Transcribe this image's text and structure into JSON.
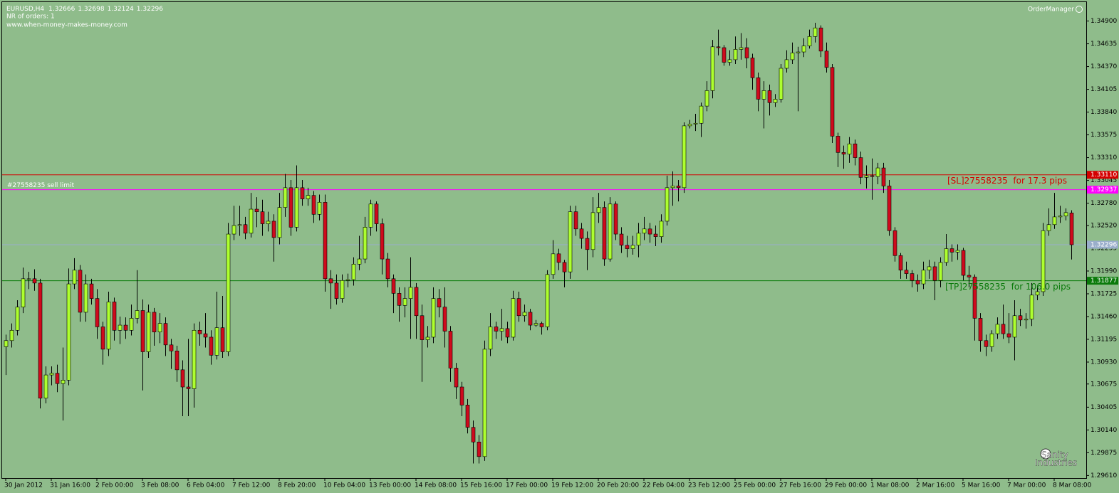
{
  "chart_data": {
    "type": "candlestick",
    "symbol": "EURUSD,H4",
    "info": "NR of orders: 1",
    "website": "www.when-money-makes-money.com",
    "panel": "OrderManager",
    "watermark": [
      "Sanity",
      "Industries"
    ],
    "background": "#8fbc8b",
    "up_color": "#adff2f",
    "down_color": "#cf0a1c",
    "bid_color": "#9aaecb",
    "ylim": [
      1.2958,
      1.3512
    ],
    "yticks": [
      {
        "value": 1.349,
        "label": "1.34900"
      },
      1.34635,
      {
        "value": 1.3437,
        "label": "1.34370"
      },
      1.34105,
      {
        "value": 1.3384,
        "label": "1.33840"
      },
      1.33575,
      {
        "value": 1.3331,
        "label": "1.33310"
      },
      1.33045,
      {
        "value": 1.3278,
        "label": "1.32780"
      },
      {
        "value": 1.3252,
        "label": "1.32520"
      },
      1.32255,
      {
        "value": 1.3199,
        "label": "1.31990"
      },
      1.31725,
      {
        "value": 1.3146,
        "label": "1.31460"
      },
      1.31195,
      {
        "value": 1.3093,
        "label": "1.30930"
      },
      1.30675,
      1.30405,
      {
        "value": 1.3014,
        "label": "1.30140"
      },
      1.29875,
      {
        "value": 1.2961,
        "label": "1.29610"
      }
    ],
    "stop_loss": {
      "price": {
        "value": 1.3311,
        "label": "1.33110"
      },
      "text": "[SL]27558235  for 17.3 pips",
      "color": "#d40000"
    },
    "order": {
      "price": 1.32937,
      "text": "#27558235 sell limit",
      "color": "#ff00ff"
    },
    "take_profit": {
      "price": 1.31877,
      "text": "[TP]27558235  for 106.0 pips",
      "color": "#0a7a0a"
    },
    "categories": [
      "30 Jan 2012",
      null,
      null,
      null,
      null,
      null,
      null,
      null,
      "31 Jan 16:00",
      null,
      null,
      null,
      null,
      null,
      null,
      null,
      "2 Feb 00:00",
      null,
      null,
      null,
      null,
      null,
      null,
      null,
      "3 Feb 08:00",
      null,
      null,
      null,
      null,
      null,
      null,
      null,
      "6 Feb 04:00",
      null,
      null,
      null,
      null,
      null,
      null,
      null,
      "7 Feb 12:00",
      null,
      null,
      null,
      null,
      null,
      null,
      null,
      "8 Feb 20:00",
      null,
      null,
      null,
      null,
      null,
      null,
      null,
      "10 Feb 04:00",
      null,
      null,
      null,
      null,
      null,
      null,
      null,
      "13 Feb 00:00",
      null,
      null,
      null,
      null,
      null,
      null,
      null,
      "14 Feb 08:00",
      null,
      null,
      null,
      null,
      null,
      null,
      null,
      "15 Feb 16:00",
      null,
      null,
      null,
      null,
      null,
      null,
      null,
      "17 Feb 00:00",
      null,
      null,
      null,
      null,
      null,
      null,
      null,
      "19 Feb 12:00",
      null,
      null,
      null,
      null,
      null,
      null,
      null,
      "20 Feb 20:00",
      null,
      null,
      null,
      null,
      null,
      null,
      null,
      "22 Feb 04:00",
      null,
      null,
      null,
      null,
      null,
      null,
      null,
      "23 Feb 12:00",
      null,
      null,
      null,
      null,
      null,
      null,
      null,
      "25 Feb 00:00",
      null,
      null,
      null,
      null,
      null,
      null,
      null,
      "27 Feb 16:00",
      null,
      null,
      null,
      null,
      null,
      null,
      null,
      "29 Feb 00:00",
      null,
      null,
      null,
      null,
      null,
      null,
      null,
      "1 Mar 08:00",
      null,
      null,
      null,
      null,
      null,
      null,
      null,
      "2 Mar 16:00",
      null,
      null,
      null,
      null,
      null,
      null,
      null,
      "5 Mar 16:00",
      null,
      null,
      null,
      null,
      null,
      null,
      null,
      "7 Mar 00:00",
      null,
      null,
      null,
      null,
      null,
      null,
      null,
      "8 Mar 08:00",
      null,
      null,
      null
    ],
    "open": [
      1.3111,
      1.3118,
      1.313,
      1.3157,
      1.319,
      1.319,
      1.3185,
      1.3051,
      1.3078,
      1.308,
      1.3068,
      1.3072,
      1.3184,
      1.32,
      1.3151,
      1.3184,
      1.3167,
      1.3134,
      1.3108,
      1.3163,
      1.313,
      1.3136,
      1.313,
      1.3144,
      1.3153,
      1.3105,
      1.3151,
      1.3128,
      1.3138,
      1.3113,
      1.3106,
      1.3084,
      1.3064,
      1.3062,
      1.313,
      1.3126,
      1.3122,
      1.3101,
      1.3133,
      1.3105,
      1.3242,
      1.3252,
      1.3253,
      1.3243,
      1.3271,
      1.3268,
      1.3254,
      1.3257,
      1.3238,
      1.3273,
      1.3296,
      1.325,
      1.3296,
      1.3283,
      1.3287,
      1.3265,
      1.3279,
      1.319,
      1.3185,
      1.3167,
      1.3188,
      1.3189,
      1.3207,
      1.3213,
      1.325,
      1.3277,
      1.3254,
      1.3213,
      1.319,
      1.3173,
      1.3159,
      1.3167,
      1.318,
      1.3147,
      1.3119,
      1.3122,
      1.3167,
      1.3157,
      1.3129,
      1.3086,
      1.3064,
      1.3043,
      1.3017,
      1.3,
      1.2983,
      1.3108,
      1.3134,
      1.3129,
      1.3132,
      1.3122,
      1.3167,
      1.3147,
      1.3151,
      1.3136,
      1.3138,
      1.3134,
      1.3195,
      1.3219,
      1.3209,
      1.3198,
      1.3268,
      1.3248,
      1.3237,
      1.3224,
      1.3267,
      1.3273,
      1.3213,
      1.3277,
      1.3242,
      1.3229,
      1.3225,
      1.3229,
      1.3243,
      1.3248,
      1.3242,
      1.3239,
      1.3257,
      1.3296,
      1.3298,
      1.3296,
      1.3368,
      1.337,
      1.3371,
      1.3391,
      1.3409,
      1.346,
      1.3459,
      1.3442,
      1.3445,
      1.3457,
      1.3459,
      1.3447,
      1.3424,
      1.3399,
      1.3409,
      1.3395,
      1.3399,
      1.3435,
      1.3445,
      1.3453,
      1.3454,
      1.3461,
      1.3472,
      1.3482,
      1.3455,
      1.3436,
      1.3356,
      1.3337,
      1.3335,
      1.3347,
      1.3331,
      1.3308,
      1.331,
      1.3309,
      1.3319,
      1.3298,
      1.3246,
      1.3217,
      1.32,
      1.3196,
      1.3188,
      1.3184,
      1.32,
      1.3204,
      1.3188,
      1.3209,
      1.3225,
      1.3221,
      1.3223,
      1.3194,
      1.3192,
      1.3144,
      1.3118,
      1.3111,
      1.3126,
      1.3137,
      1.3126,
      1.3122,
      1.3147,
      1.3142,
      1.3143,
      1.3171,
      1.3175,
      1.3246,
      1.3253,
      1.3262,
      1.3263,
      1.32666
    ],
    "high": [
      1.3125,
      1.3138,
      1.3165,
      1.3203,
      1.3198,
      1.3201,
      1.319,
      1.3088,
      1.3088,
      1.309,
      1.311,
      1.3202,
      1.3214,
      1.3206,
      1.3195,
      1.319,
      1.3178,
      1.314,
      1.3175,
      1.3168,
      1.3146,
      1.3145,
      1.316,
      1.32,
      1.3166,
      1.316,
      1.3156,
      1.315,
      1.3145,
      1.312,
      1.3112,
      1.3095,
      1.312,
      1.3138,
      1.314,
      1.315,
      1.313,
      1.3175,
      1.317,
      1.3255,
      1.3275,
      1.3275,
      1.3262,
      1.329,
      1.3285,
      1.3282,
      1.3268,
      1.3265,
      1.329,
      1.3312,
      1.3305,
      1.3322,
      1.3305,
      1.3296,
      1.3292,
      1.3288,
      1.3288,
      1.32,
      1.3195,
      1.3195,
      1.3196,
      1.3215,
      1.324,
      1.3262,
      1.3282,
      1.328,
      1.326,
      1.322,
      1.3195,
      1.318,
      1.318,
      1.3215,
      1.3185,
      1.316,
      1.3135,
      1.318,
      1.3178,
      1.318,
      1.3135,
      1.3092,
      1.307,
      1.305,
      1.3025,
      1.3008,
      1.3118,
      1.315,
      1.314,
      1.3155,
      1.314,
      1.3176,
      1.3175,
      1.316,
      1.3155,
      1.3142,
      1.314,
      1.32,
      1.3235,
      1.3225,
      1.3212,
      1.3275,
      1.3275,
      1.3255,
      1.3245,
      1.3285,
      1.329,
      1.328,
      1.3285,
      1.328,
      1.325,
      1.324,
      1.324,
      1.3255,
      1.3262,
      1.3255,
      1.3252,
      1.3265,
      1.331,
      1.3315,
      1.3305,
      1.3372,
      1.3375,
      1.3382,
      1.3395,
      1.342,
      1.3468,
      1.348,
      1.3462,
      1.3456,
      1.3472,
      1.3476,
      1.347,
      1.3452,
      1.343,
      1.342,
      1.3416,
      1.3405,
      1.344,
      1.3456,
      1.3465,
      1.346,
      1.347,
      1.348,
      1.3488,
      1.3485,
      1.3465,
      1.344,
      1.336,
      1.3345,
      1.3355,
      1.3352,
      1.3338,
      1.3322,
      1.333,
      1.3325,
      1.3325,
      1.3305,
      1.325,
      1.322,
      1.321,
      1.32,
      1.3195,
      1.321,
      1.3212,
      1.321,
      1.3215,
      1.3242,
      1.323,
      1.323,
      1.3226,
      1.3205,
      1.3195,
      1.315,
      1.3125,
      1.313,
      1.3145,
      1.316,
      1.315,
      1.3165,
      1.3155,
      1.315,
      1.3185,
      1.3182,
      1.3255,
      1.3272,
      1.329,
      1.3275,
      1.3272,
      1.32698
    ],
    "low": [
      1.3078,
      1.311,
      1.3124,
      1.315,
      1.3178,
      1.3176,
      1.3039,
      1.3045,
      1.3066,
      1.3058,
      1.3025,
      1.3066,
      1.3178,
      1.314,
      1.314,
      1.316,
      1.312,
      1.309,
      1.31,
      1.3118,
      1.3114,
      1.312,
      1.3124,
      1.3138,
      1.306,
      1.3098,
      1.3112,
      1.3115,
      1.31,
      1.3085,
      1.307,
      1.303,
      1.303,
      1.304,
      1.3112,
      1.311,
      1.309,
      1.3096,
      1.3098,
      1.31,
      1.3235,
      1.324,
      1.3236,
      1.3238,
      1.325,
      1.324,
      1.3245,
      1.321,
      1.323,
      1.3262,
      1.324,
      1.3245,
      1.3275,
      1.3275,
      1.3255,
      1.3258,
      1.3175,
      1.3155,
      1.316,
      1.3162,
      1.318,
      1.3182,
      1.32,
      1.3208,
      1.324,
      1.3245,
      1.3195,
      1.318,
      1.315,
      1.314,
      1.3145,
      1.312,
      1.312,
      1.307,
      1.311,
      1.3115,
      1.3145,
      1.311,
      1.307,
      1.305,
      1.303,
      1.301,
      1.2975,
      1.2975,
      1.2978,
      1.31,
      1.312,
      1.3118,
      1.3115,
      1.3118,
      1.314,
      1.314,
      1.313,
      1.3134,
      1.3125,
      1.313,
      1.319,
      1.32,
      1.318,
      1.319,
      1.324,
      1.3225,
      1.32,
      1.3215,
      1.3255,
      1.3205,
      1.321,
      1.3235,
      1.322,
      1.3215,
      1.3218,
      1.3215,
      1.3235,
      1.3232,
      1.3228,
      1.3232,
      1.3252,
      1.3275,
      1.328,
      1.329,
      1.3365,
      1.3362,
      1.3355,
      1.3385,
      1.34,
      1.345,
      1.3438,
      1.3438,
      1.344,
      1.3445,
      1.3435,
      1.341,
      1.3385,
      1.3365,
      1.338,
      1.339,
      1.3395,
      1.343,
      1.344,
      1.3385,
      1.3448,
      1.3458,
      1.3465,
      1.3448,
      1.343,
      1.3348,
      1.332,
      1.3318,
      1.3325,
      1.3322,
      1.33,
      1.3295,
      1.3282,
      1.33,
      1.329,
      1.324,
      1.321,
      1.319,
      1.319,
      1.318,
      1.3175,
      1.3178,
      1.319,
      1.3165,
      1.318,
      1.3205,
      1.321,
      1.3212,
      1.3188,
      1.318,
      1.3118,
      1.3105,
      1.31,
      1.3105,
      1.312,
      1.312,
      1.3115,
      1.3095,
      1.3135,
      1.3132,
      1.3135,
      1.3165,
      1.317,
      1.324,
      1.3248,
      1.3255,
      1.3258,
      1.32124
    ],
    "close": [
      1.3118,
      1.313,
      1.3157,
      1.319,
      1.319,
      1.3185,
      1.3051,
      1.3078,
      1.308,
      1.3068,
      1.3072,
      1.3184,
      1.32,
      1.3151,
      1.3184,
      1.3167,
      1.3134,
      1.3108,
      1.3163,
      1.313,
      1.3136,
      1.313,
      1.3144,
      1.3153,
      1.3105,
      1.3151,
      1.3128,
      1.3138,
      1.3113,
      1.3106,
      1.3084,
      1.3064,
      1.3062,
      1.313,
      1.3126,
      1.3122,
      1.3101,
      1.3133,
      1.3105,
      1.3242,
      1.3252,
      1.3253,
      1.3243,
      1.3271,
      1.3268,
      1.3254,
      1.3257,
      1.3238,
      1.3273,
      1.3296,
      1.325,
      1.3296,
      1.3283,
      1.3287,
      1.3265,
      1.3279,
      1.319,
      1.3185,
      1.3167,
      1.3188,
      1.3189,
      1.3207,
      1.3213,
      1.325,
      1.3277,
      1.3254,
      1.3213,
      1.319,
      1.3173,
      1.3159,
      1.3167,
      1.318,
      1.3147,
      1.3119,
      1.3122,
      1.3167,
      1.3157,
      1.3129,
      1.3086,
      1.3064,
      1.3043,
      1.3017,
      1.3,
      1.2983,
      1.3108,
      1.3134,
      1.3129,
      1.3132,
      1.3122,
      1.3167,
      1.3147,
      1.3151,
      1.3136,
      1.3138,
      1.3134,
      1.3195,
      1.3219,
      1.3209,
      1.3198,
      1.3268,
      1.3248,
      1.3237,
      1.3224,
      1.3267,
      1.3273,
      1.3213,
      1.3277,
      1.3242,
      1.3229,
      1.3225,
      1.3229,
      1.3243,
      1.3248,
      1.3242,
      1.3239,
      1.3257,
      1.3296,
      1.3298,
      1.3296,
      1.3368,
      1.337,
      1.3371,
      1.3391,
      1.3409,
      1.346,
      1.3459,
      1.3442,
      1.3445,
      1.3457,
      1.3459,
      1.3447,
      1.3424,
      1.3399,
      1.3409,
      1.3395,
      1.3399,
      1.3435,
      1.3445,
      1.3453,
      1.3454,
      1.3461,
      1.3472,
      1.3482,
      1.3455,
      1.3436,
      1.3356,
      1.3337,
      1.3335,
      1.3347,
      1.3331,
      1.3308,
      1.331,
      1.3309,
      1.3319,
      1.3298,
      1.3246,
      1.3217,
      1.32,
      1.3196,
      1.3188,
      1.3184,
      1.32,
      1.3204,
      1.3188,
      1.3209,
      1.3225,
      1.3221,
      1.3223,
      1.3194,
      1.3192,
      1.3144,
      1.3118,
      1.3111,
      1.3126,
      1.3137,
      1.3126,
      1.3122,
      1.3147,
      1.3142,
      1.3143,
      1.3171,
      1.3175,
      1.3246,
      1.3253,
      1.3262,
      1.3263,
      1.3267,
      1.32296
    ]
  }
}
